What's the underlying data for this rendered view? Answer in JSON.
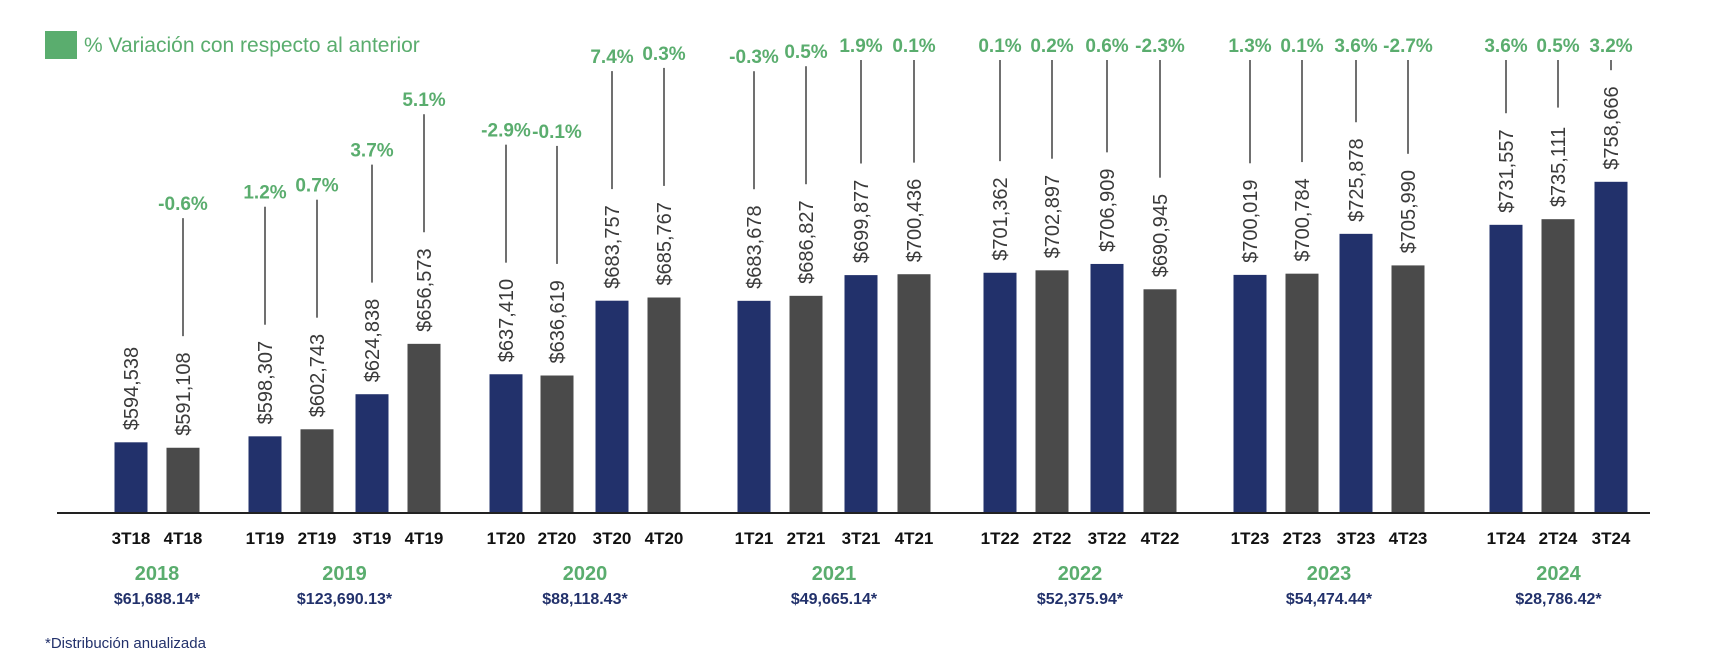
{
  "legend": {
    "label": "% Variación con respecto al anterior",
    "color": "#5aad6e"
  },
  "footnote": "*Distribución anualizada",
  "colors": {
    "navy": "#22316b",
    "gray": "#4a4a4a",
    "green": "#5aad6e"
  },
  "chart_data": {
    "type": "bar",
    "categories": [
      "3T18",
      "4T18",
      "1T19",
      "2T19",
      "3T19",
      "4T19",
      "1T20",
      "2T20",
      "3T20",
      "4T20",
      "1T21",
      "2T21",
      "3T21",
      "4T21",
      "1T22",
      "2T22",
      "3T22",
      "4T22",
      "1T23",
      "2T23",
      "3T23",
      "4T23",
      "1T24",
      "2T24",
      "3T24"
    ],
    "values": [
      594538,
      591108,
      598307,
      602743,
      624838,
      656573,
      637410,
      636619,
      683757,
      685767,
      683678,
      686827,
      699877,
      700436,
      701362,
      702897,
      706909,
      690945,
      700019,
      700784,
      725878,
      705990,
      731557,
      735111,
      758666
    ],
    "value_labels": [
      "$594,538",
      "$591,108",
      "$598,307",
      "$602,743",
      "$624,838",
      "$656,573",
      "$637,410",
      "$636,619",
      "$683,757",
      "$685,767",
      "$683,678",
      "$686,827",
      "$699,877",
      "$700,436",
      "$701,362",
      "$702,897",
      "$706,909",
      "$690,945",
      "$700,019",
      "$700,784",
      "$725,878",
      "$705,990",
      "$731,557",
      "$735,111",
      "$758,666"
    ],
    "pct_change": [
      "",
      "-0.6%",
      "1.2%",
      "0.7%",
      "3.7%",
      "5.1%",
      "-2.9%",
      "-0.1%",
      "7.4%",
      "0.3%",
      "-0.3%",
      "0.5%",
      "1.9%",
      "0.1%",
      "0.1%",
      "0.2%",
      "0.6%",
      "-2.3%",
      "1.3%",
      "0.1%",
      "3.6%",
      "-2.7%",
      "3.6%",
      "0.5%",
      "3.2%"
    ],
    "bar_colors": [
      "navy",
      "gray",
      "navy",
      "gray",
      "navy",
      "gray",
      "navy",
      "gray",
      "navy",
      "gray",
      "navy",
      "gray",
      "navy",
      "gray",
      "navy",
      "gray",
      "navy",
      "gray",
      "navy",
      "gray",
      "navy",
      "gray",
      "navy",
      "gray",
      "navy"
    ],
    "groups": [
      {
        "year": "2018",
        "distribution": "$61,688.14*",
        "indices": [
          0,
          1
        ]
      },
      {
        "year": "2019",
        "distribution": "$123,690.13*",
        "indices": [
          2,
          3,
          4,
          5
        ]
      },
      {
        "year": "2020",
        "distribution": "$88,118.43*",
        "indices": [
          6,
          7,
          8,
          9
        ]
      },
      {
        "year": "2021",
        "distribution": "$49,665.14*",
        "indices": [
          10,
          11,
          12,
          13
        ]
      },
      {
        "year": "2022",
        "distribution": "$52,375.94*",
        "indices": [
          14,
          15,
          16,
          17
        ]
      },
      {
        "year": "2023",
        "distribution": "$54,474.44*",
        "indices": [
          18,
          19,
          20,
          21
        ]
      },
      {
        "year": "2024",
        "distribution": "$28,786.42*",
        "indices": [
          22,
          23,
          24
        ]
      }
    ],
    "title": "",
    "xlabel": "",
    "ylabel": "",
    "ylim": [
      550000,
      785000
    ],
    "grid": false,
    "legend_position": "top-left"
  }
}
